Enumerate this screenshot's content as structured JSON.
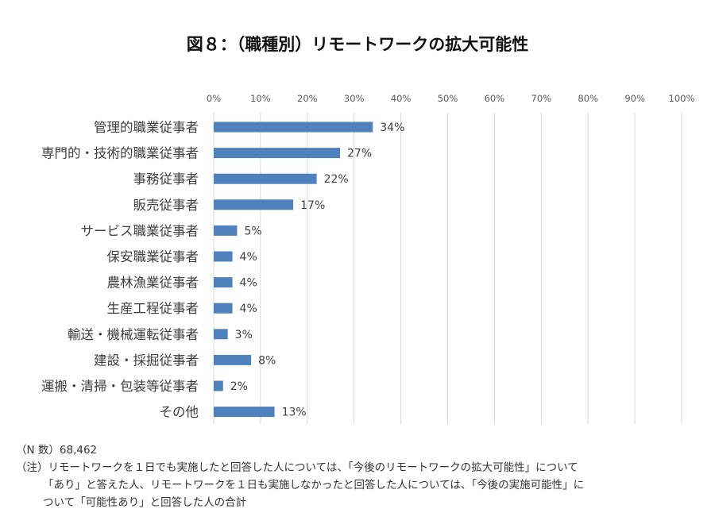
{
  "chart_data": {
    "type": "bar",
    "orientation": "horizontal",
    "title": "図８：（職種別）リモートワークの拡大可能性",
    "categories": [
      "管理的職業従事者",
      "専門的・技術的職業従事者",
      "事務従事者",
      "販売従事者",
      "サービス職業従事者",
      "保安職業従事者",
      "農林漁業従事者",
      "生産工程従事者",
      "輸送・機械運転従事者",
      "建設・採掘従事者",
      "運搬・清掃・包装等従事者",
      "その他"
    ],
    "values": [
      34,
      27,
      22,
      17,
      5,
      4,
      4,
      4,
      3,
      8,
      2,
      13
    ],
    "data_labels": [
      "34%",
      "27%",
      "22%",
      "17%",
      "5%",
      "4%",
      "4%",
      "4%",
      "3%",
      "8%",
      "2%",
      "13%"
    ],
    "xlim": [
      0,
      100
    ],
    "x_ticks": [
      "0%",
      "10%",
      "20%",
      "30%",
      "40%",
      "50%",
      "60%",
      "70%",
      "80%",
      "90%",
      "100%"
    ],
    "x_axis_position": "top",
    "grid": true,
    "legend": "none",
    "bar_color": "#4f81bd",
    "grid_color": "#d9d9d9"
  },
  "notes": {
    "n_line": "（N 数）68,462",
    "note_line1": "（注）リモートワークを１日でも実施したと回答した人については、「今後のリモートワークの拡大可能性」について",
    "note_line2": "「あり」と答えた人、リモートワークを１日も実施しなかったと回答した人については、「今後の実施可能性」に",
    "note_line3": "ついて「可能性あり」と回答した人の合計"
  }
}
